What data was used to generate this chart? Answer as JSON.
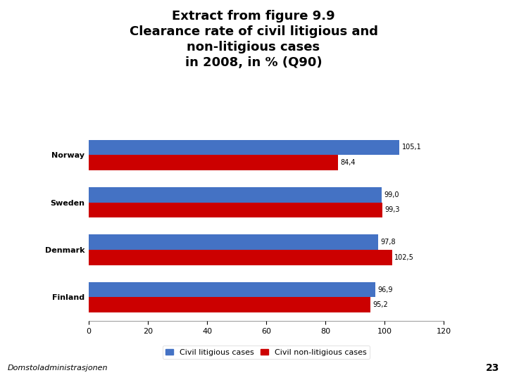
{
  "title": "Extract from figure 9.9\nClearance rate of civil litigious and\nnon-litigious cases\nin 2008, in % (Q90)",
  "countries": [
    "Norway",
    "Sweden",
    "Denmark",
    "Finland"
  ],
  "litigious": [
    105.1,
    99.0,
    97.8,
    96.9
  ],
  "non_litigious": [
    84.4,
    99.3,
    102.5,
    95.2
  ],
  "litigious_labels": [
    "105,1",
    "99,0",
    "97,8",
    "96,9"
  ],
  "non_litigious_labels": [
    "84,4",
    "99,3",
    "102,5",
    "95,2"
  ],
  "litigious_color": "#4472C4",
  "non_litigious_color": "#CC0000",
  "bar_height": 0.32,
  "xlim": [
    0,
    120
  ],
  "xticks": [
    0,
    20,
    40,
    60,
    80,
    100,
    120
  ],
  "legend_litigious": "Civil litigious cases",
  "legend_non_litigious": "Civil non-litigious cases",
  "bg_color": "#FFFFFF",
  "chart_bg": "#FFFFFF",
  "footer_color": "#C8A951",
  "footer_text": "Domstoladministrasjonen",
  "footer_number": "23",
  "title_fontsize": 13,
  "tick_fontsize": 8,
  "country_fontsize": 8,
  "legend_fontsize": 8,
  "value_fontsize": 7
}
